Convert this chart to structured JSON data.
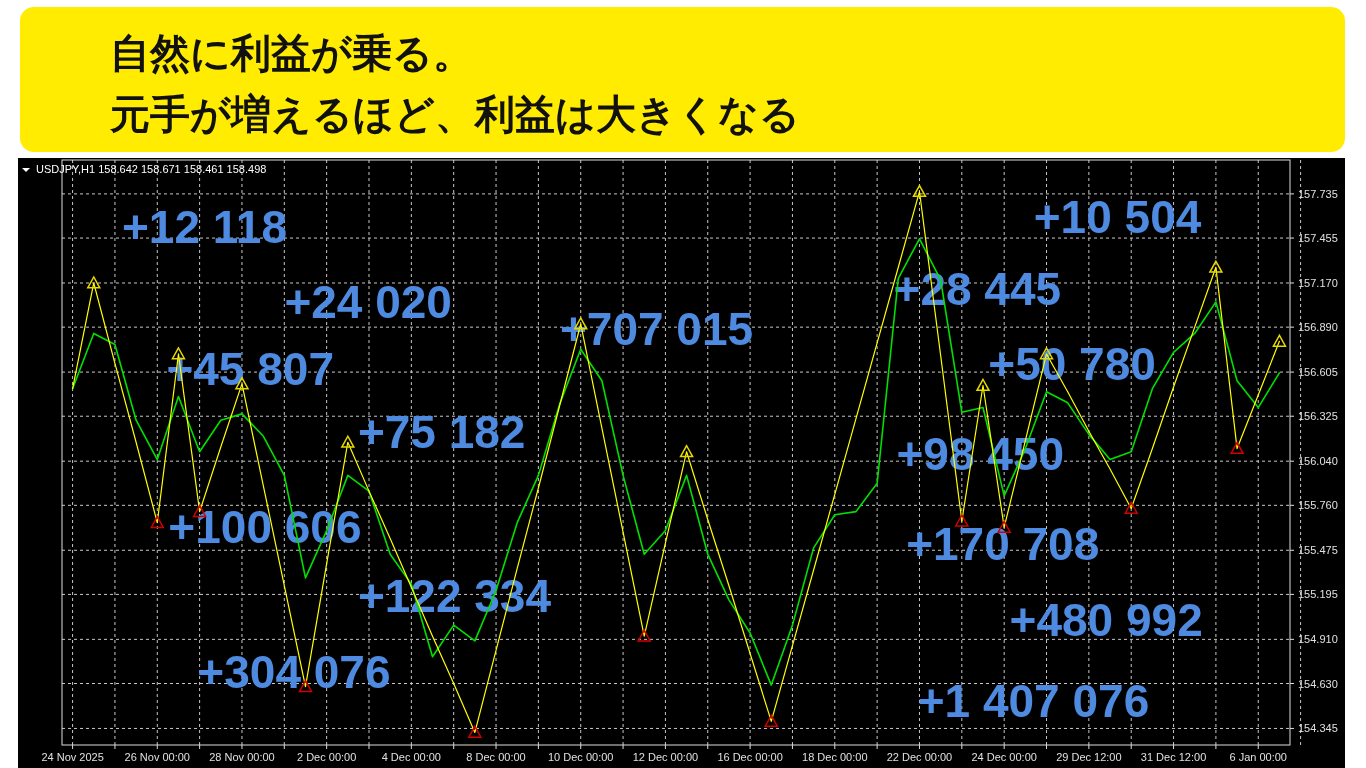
{
  "chart_data": {
    "type": "line",
    "title": "自然に利益が乗る。",
    "subtitle": "元手が増えるほど、利益は大きくなる",
    "annotations": [
      "USDJPY,H1  158.642 158.671 158.461 158.498",
      "+12 118",
      "+24 020",
      "+45 807",
      "+75 182",
      "+100 606",
      "+122 334",
      "+304 076",
      "+707 015",
      "+28 445",
      "+10 504",
      "+50 780",
      "+98 450",
      "+170 708",
      "+480 992",
      "+1 407 076"
    ],
    "categories": [
      "24 Nov 2025",
      null,
      null,
      null,
      "26 Nov 00:00",
      null,
      null,
      null,
      "28 Nov 00:00",
      null,
      null,
      null,
      "2 Dec 00:00",
      null,
      null,
      null,
      "4 Dec 00:00",
      null,
      null,
      null,
      "8 Dec 00:00",
      null,
      null,
      null,
      "10 Dec 00:00",
      null,
      null,
      null,
      "12 Dec 00:00",
      null,
      null,
      null,
      "16 Dec 00:00",
      null,
      null,
      null,
      "18 Dec 00:00",
      null,
      null,
      null,
      "22 Dec 00:00",
      null,
      null,
      null,
      "24 Dec 00:00",
      null,
      null,
      null,
      "29 Dec 12:00",
      null,
      null,
      null,
      "31 Dec 12:00",
      null,
      null,
      null,
      "6 Jan 00:00",
      null
    ],
    "ylim": [
      154.24,
      157.95
    ],
    "yticks": [
      157.735,
      157.455,
      {
        "value": 157.17,
        "label": "157.170"
      },
      {
        "value": 156.89,
        "label": "156.890"
      },
      156.605,
      156.325,
      {
        "value": 156.04,
        "label": "156.040"
      },
      {
        "value": 155.76,
        "label": "155.760"
      },
      155.475,
      155.195,
      {
        "value": 154.91,
        "label": "154.910"
      },
      {
        "value": 154.63,
        "label": "154.630"
      },
      154.345
    ],
    "grid": true,
    "series": [
      {
        "type": "line",
        "color": "#00e000",
        "values": [
          156.5,
          156.85,
          156.78,
          156.3,
          156.05,
          156.45,
          156.1,
          156.3,
          156.34,
          156.2,
          155.95,
          155.3,
          155.6,
          155.95,
          155.85,
          155.45,
          155.26,
          154.8,
          155.0,
          154.9,
          155.22,
          155.65,
          155.95,
          156.4,
          156.75,
          156.55,
          155.95,
          155.45,
          155.6,
          155.95,
          155.45,
          155.16,
          154.95,
          154.62,
          155.0,
          155.49,
          155.7,
          155.72,
          155.9,
          157.2,
          157.45,
          157.19,
          156.35,
          156.38,
          155.82,
          156.12,
          156.48,
          156.41,
          156.21,
          156.05,
          156.1,
          156.5,
          156.73,
          156.85,
          157.05,
          156.55,
          156.38,
          156.6
        ]
      },
      {
        "type": "line",
        "color": "#ffff00",
        "values": [
          156.5,
          157.17,
          156.66,
          156.16,
          155.65,
          156.72,
          155.72,
          156.13,
          156.53,
          155.89,
          155.25,
          154.61,
          155.39,
          156.16,
          155.85,
          155.55,
          155.24,
          154.93,
          154.63,
          154.32,
          154.84,
          155.36,
          155.87,
          156.39,
          156.91,
          156.25,
          155.59,
          154.93,
          155.52,
          156.1,
          155.67,
          155.25,
          154.82,
          154.39,
          154.87,
          155.35,
          155.83,
          156.31,
          156.79,
          157.27,
          157.75,
          156.71,
          155.66,
          156.52,
          155.62,
          156.17,
          156.72,
          156.48,
          156.23,
          155.99,
          155.74,
          156.12,
          156.51,
          156.89,
          157.27,
          156.12,
          156.46,
          156.8
        ]
      },
      {
        "type": "scatter",
        "marker": "triangle",
        "color": "#e8d800",
        "values": [
          null,
          157.17,
          null,
          null,
          null,
          156.72,
          null,
          null,
          156.53,
          null,
          null,
          null,
          null,
          156.16,
          null,
          null,
          null,
          null,
          null,
          null,
          null,
          null,
          null,
          null,
          156.91,
          null,
          null,
          null,
          null,
          156.1,
          null,
          null,
          null,
          null,
          null,
          null,
          null,
          null,
          null,
          null,
          157.75,
          null,
          null,
          156.52,
          null,
          null,
          156.72,
          null,
          null,
          null,
          null,
          null,
          null,
          null,
          157.27,
          null,
          null,
          156.8
        ]
      },
      {
        "type": "scatter",
        "marker": "triangle",
        "color": "#d00000",
        "values": [
          null,
          null,
          null,
          null,
          155.65,
          null,
          155.72,
          null,
          null,
          null,
          null,
          154.61,
          null,
          null,
          null,
          null,
          null,
          null,
          null,
          154.32,
          null,
          null,
          null,
          null,
          null,
          null,
          null,
          154.93,
          null,
          null,
          null,
          null,
          null,
          154.39,
          null,
          null,
          null,
          null,
          null,
          null,
          null,
          null,
          155.66,
          null,
          155.62,
          null,
          null,
          null,
          null,
          null,
          155.74,
          null,
          null,
          null,
          null,
          156.12,
          null,
          null
        ]
      }
    ]
  }
}
